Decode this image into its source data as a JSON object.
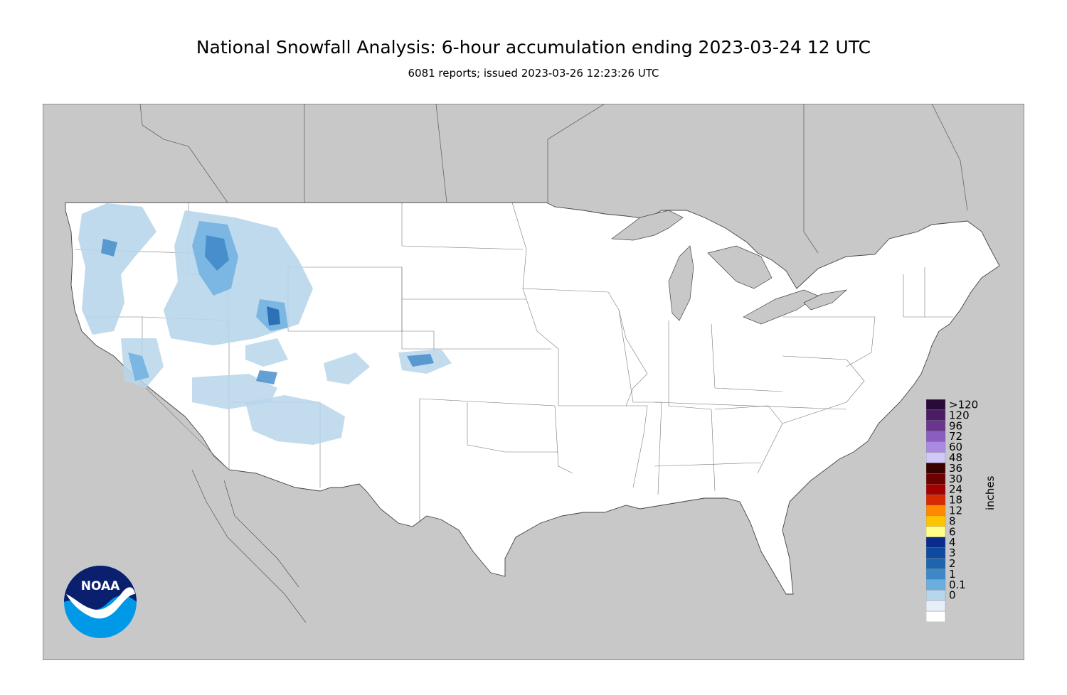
{
  "title": "National Snowfall Analysis: 6-hour accumulation ending 2023-03-24 12 UTC",
  "subtitle": "6081 reports; issued 2023-03-26 12:23:26 UTC",
  "logo": {
    "text": "NOAA",
    "icon": "noaa-logo-icon"
  },
  "colors": {
    "background_land_outside": "#c8c8c8",
    "conus_fill": "#ffffff",
    "border": "#555555"
  },
  "legend": {
    "unit_label": "inches",
    "bins": [
      {
        "label": ">120",
        "color": "#2a0a38"
      },
      {
        "label": "120",
        "color": "#4b1c64"
      },
      {
        "label": "96",
        "color": "#6a3590"
      },
      {
        "label": "72",
        "color": "#8a5ec0"
      },
      {
        "label": "60",
        "color": "#a98ae0"
      },
      {
        "label": "48",
        "color": "#d0c8f8"
      },
      {
        "label": "36",
        "color": "#3a0000"
      },
      {
        "label": "30",
        "color": "#6e0000"
      },
      {
        "label": "24",
        "color": "#a40000"
      },
      {
        "label": "18",
        "color": "#d62a00"
      },
      {
        "label": "12",
        "color": "#ff8a00"
      },
      {
        "label": "8",
        "color": "#ffc400"
      },
      {
        "label": "6",
        "color": "#ffff8a"
      },
      {
        "label": "4",
        "color": "#0a2a8c"
      },
      {
        "label": "3",
        "color": "#0d4aa0"
      },
      {
        "label": "2",
        "color": "#1f65ae"
      },
      {
        "label": "1",
        "color": "#3e88c8"
      },
      {
        "label": "0.1",
        "color": "#6aaee0"
      },
      {
        "label": "0",
        "color": "#b8d6ea"
      },
      {
        "label": "",
        "color": "#e6eff8"
      },
      {
        "label": "",
        "color": "#ffffff"
      }
    ]
  }
}
